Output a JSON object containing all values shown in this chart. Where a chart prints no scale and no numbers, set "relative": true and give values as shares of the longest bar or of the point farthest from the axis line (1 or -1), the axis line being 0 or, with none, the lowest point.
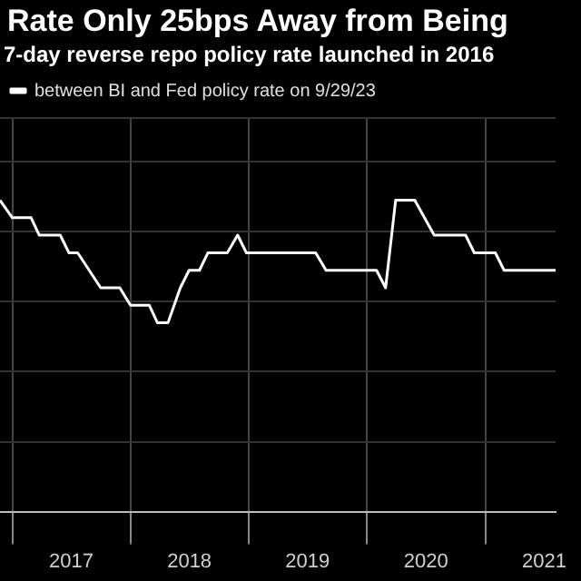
{
  "chart_data": {
    "type": "line",
    "title": "Rate Only 25bps Away from Being",
    "subtitle": "7-day reverse repo policy rate launched in 2016",
    "relative": true,
    "legend": "top left",
    "grid": true,
    "marker": "none",
    "line_style": "solid",
    "xlim": [
      "2016-11-24",
      "2021-08-06"
    ],
    "xticks": [
      {
        "value": "2017-01-01",
        "label": null
      },
      {
        "value": "2017-07-02",
        "label": "2017"
      },
      {
        "value": "2018-01-01",
        "label": null
      },
      {
        "value": "2018-07-02",
        "label": "2018"
      },
      {
        "value": "2019-01-01",
        "label": null
      },
      {
        "value": "2019-07-02",
        "label": "2019"
      },
      {
        "value": "2020-01-01",
        "label": null
      },
      {
        "value": "2020-07-02",
        "label": "2020"
      },
      {
        "value": "2021-01-01",
        "label": null
      },
      {
        "value": "2021-07-02",
        "label": "2021"
      }
    ],
    "x": [
      "2016-11-24",
      "2017-01-01",
      "2017-02-28",
      "2017-03-25",
      "2017-05-29",
      "2017-06-25",
      "2017-07-22",
      "2017-10-01",
      "2017-11-29",
      "2018-01-01",
      "2018-02-28",
      "2018-03-25",
      "2018-04-27",
      "2018-06-04",
      "2018-07-01",
      "2018-08-02",
      "2018-08-28",
      "2018-10-27",
      "2018-11-28",
      "2018-12-25",
      "2019-07-27",
      "2019-08-28",
      "2020-01-31",
      "2020-02-28",
      "2020-03-30",
      "2020-05-28",
      "2020-07-27",
      "2020-11-01",
      "2020-11-28",
      "2021-02-01",
      "2021-02-28",
      "2021-08-06"
    ],
    "series": [
      {
        "name": "between BI and Fed policy rate on 9/29/23",
        "color": "#ffffff",
        "values": [
          1.0,
          0.944,
          0.944,
          0.888,
          0.888,
          0.831,
          0.831,
          0.719,
          0.719,
          0.663,
          0.663,
          0.607,
          0.607,
          0.719,
          0.775,
          0.775,
          0.831,
          0.831,
          0.888,
          0.831,
          0.831,
          0.775,
          0.775,
          0.719,
          1.0,
          1.0,
          0.888,
          0.888,
          0.831,
          0.831,
          0.775,
          0.775
        ]
      }
    ]
  }
}
